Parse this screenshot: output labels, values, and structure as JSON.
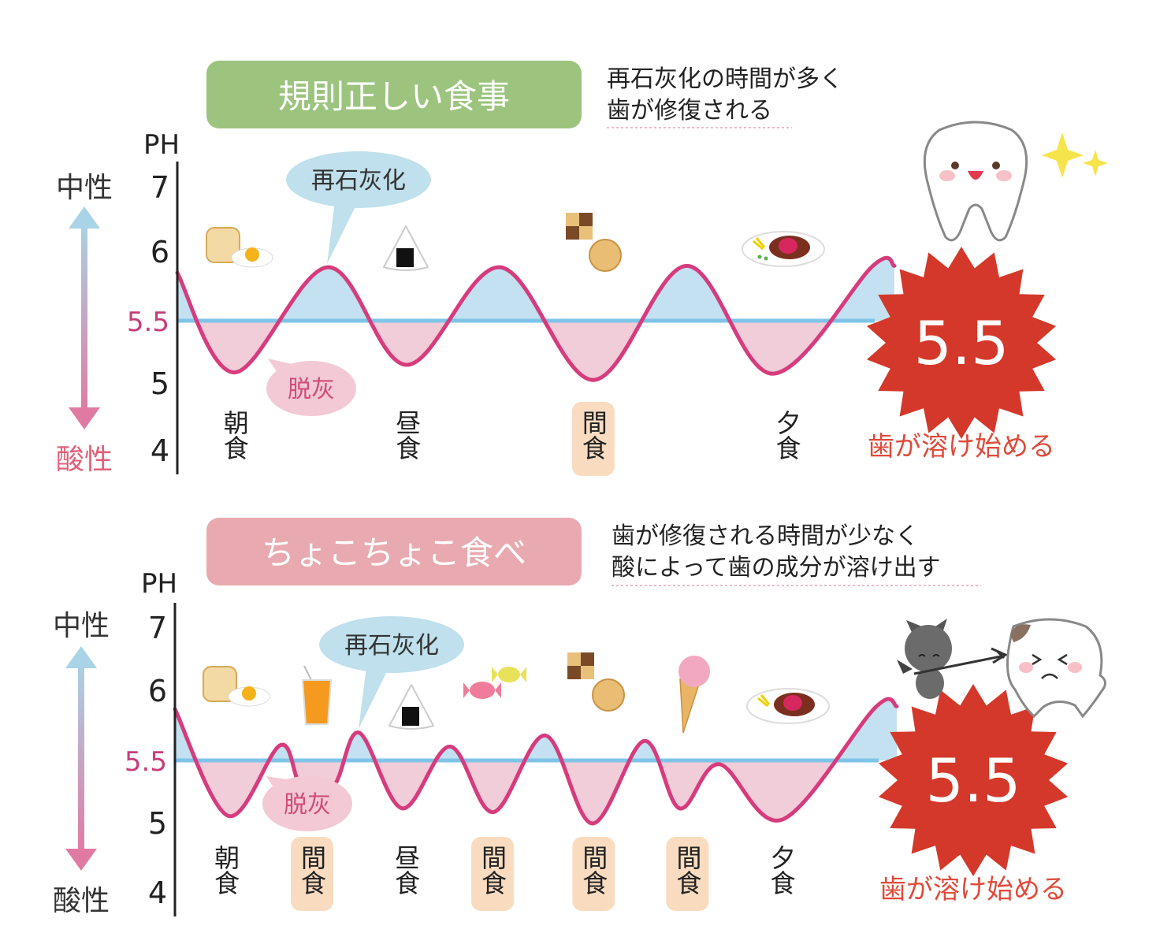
{
  "chart_data": [
    {
      "type": "line",
      "title": "規則正しい食事",
      "note_lines": [
        "再石灰化の時間が多く",
        "歯が修復される"
      ],
      "ylabel": "PH",
      "y_ticks": [
        "7",
        "6",
        "5.5",
        "5",
        "4"
      ],
      "ylim": [
        4,
        7
      ],
      "neutral_label": "中性",
      "acid_label": "酸性",
      "remineralization_label": "再石灰化",
      "demineralization_label": "脱灰",
      "threshold": 5.5,
      "threshold_label": "5.5",
      "warning": "歯が溶け始める",
      "meals": [
        {
          "label": "朝食",
          "t": 8,
          "snack": false
        },
        {
          "label": "昼食",
          "t": 32,
          "snack": false
        },
        {
          "label": "間食",
          "t": 58,
          "snack": true
        },
        {
          "label": "夕食",
          "t": 85,
          "snack": false
        }
      ],
      "x": [
        0,
        8,
        21,
        32,
        45,
        58,
        71,
        83,
        97,
        100
      ],
      "y": [
        5.85,
        5.09,
        5.89,
        5.15,
        5.89,
        5.03,
        5.9,
        5.08,
        5.9,
        5.9
      ]
    },
    {
      "type": "line",
      "title": "ちょこちょこ食べ",
      "note_lines": [
        "歯が修復される時間が少なく",
        "酸によって歯の成分が溶け出す"
      ],
      "ylabel": "PH",
      "y_ticks": [
        "7",
        "6",
        "5.5",
        "5",
        "4"
      ],
      "ylim": [
        4,
        7
      ],
      "neutral_label": "中性",
      "acid_label": "酸性",
      "remineralization_label": "再石灰化",
      "demineralization_label": "脱灰",
      "threshold": 5.5,
      "threshold_label": "5.5",
      "warning": "歯が溶け始める",
      "meals": [
        {
          "label": "朝食",
          "t": 7,
          "snack": false
        },
        {
          "label": "間食",
          "t": 19,
          "snack": true
        },
        {
          "label": "昼食",
          "t": 32,
          "snack": false
        },
        {
          "label": "間食",
          "t": 44,
          "snack": true
        },
        {
          "label": "間食",
          "t": 58,
          "snack": true
        },
        {
          "label": "間食",
          "t": 71,
          "snack": true
        },
        {
          "label": "夕食",
          "t": 84,
          "snack": false
        }
      ],
      "x": [
        0,
        7.4,
        14.6,
        17.5,
        22,
        25.5,
        31.5,
        38.1,
        44.1,
        51.3,
        57.8,
        65,
        69.9,
        75.4,
        84.1,
        97,
        100
      ],
      "y": [
        5.87,
        5.06,
        5.61,
        5.3,
        5.3,
        5.7,
        5.12,
        5.6,
        5.09,
        5.68,
        5.0,
        5.64,
        5.12,
        5.47,
        5.03,
        5.88,
        5.89
      ]
    }
  ],
  "colors": {
    "curve": "#d63c7d",
    "above_fill": "#c3e1f0",
    "below_fill": "#f1ccd9",
    "threshold_line": "#7fc4e8",
    "title_green": "#9cc47e",
    "title_pink": "#e8aab0",
    "burst": "#d4382a",
    "warning_text": "#e04a3a",
    "snack_bg": "#f9dcc0"
  }
}
